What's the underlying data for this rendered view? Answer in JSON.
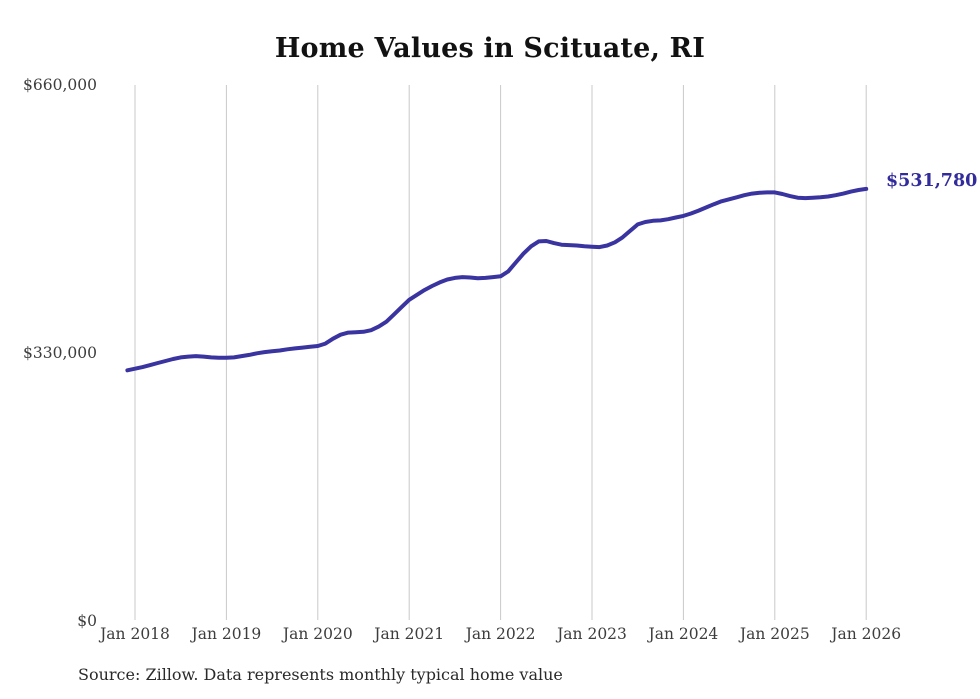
{
  "chart": {
    "title": "Home Values in Scituate, RI",
    "end_label": "$531,780",
    "source_note": "Source: Zillow. Data represents monthly typical home value",
    "colors": {
      "line": "#3a34a0",
      "grid": "#c9c9c9",
      "axis_text": "#3d3d3d",
      "title_text": "#121212",
      "end_label_text": "#322b9c",
      "source_text": "#2a2a2a",
      "background": "#ffffff"
    }
  },
  "chart_data": {
    "type": "line",
    "title": "Home Values in Scituate, RI",
    "xlabel": "",
    "ylabel": "",
    "x_tick_labels": [
      "Jan 2018",
      "Jan 2019",
      "Jan 2020",
      "Jan 2021",
      "Jan 2022",
      "Jan 2023",
      "Jan 2024",
      "Jan 2025",
      "Jan 2026"
    ],
    "y_tick_labels": [
      "$660,000",
      "$330,000",
      "$0"
    ],
    "ylim": [
      0,
      660000
    ],
    "grid": "vertical-only",
    "legend": "none",
    "annotations": [
      {
        "text": "$531,780",
        "position": "end-of-line"
      }
    ],
    "series": [
      {
        "name": "Monthly typical home value",
        "unit": "USD",
        "frequency": "monthly",
        "start_month": "2017-12",
        "end_month": "2026-01",
        "final_value": 531780,
        "values": [
          308000,
          310000,
          312000,
          314500,
          317000,
          319500,
          322000,
          324000,
          325000,
          325500,
          325000,
          324000,
          323500,
          323500,
          324000,
          325500,
          327000,
          329000,
          330500,
          331500,
          332500,
          334000,
          335000,
          336000,
          337000,
          338000,
          341000,
          347000,
          352000,
          354500,
          355000,
          355500,
          357500,
          362000,
          368000,
          377000,
          386000,
          395000,
          401000,
          407000,
          412000,
          416500,
          420000,
          422000,
          423000,
          422500,
          421500,
          422000,
          423000,
          424000,
          430000,
          441000,
          452000,
          461000,
          467000,
          467500,
          465000,
          463000,
          462500,
          462000,
          461000,
          460500,
          460000,
          462000,
          466000,
          472000,
          480000,
          488000,
          491000,
          492500,
          493000,
          494500,
          496500,
          498500,
          501500,
          505000,
          509000,
          513000,
          516500,
          519000,
          521500,
          524000,
          526000,
          527000,
          527500,
          527500,
          525500,
          523000,
          521000,
          520500,
          521000,
          521500,
          522500,
          524000,
          526000,
          528500,
          530500,
          531780
        ]
      }
    ]
  }
}
